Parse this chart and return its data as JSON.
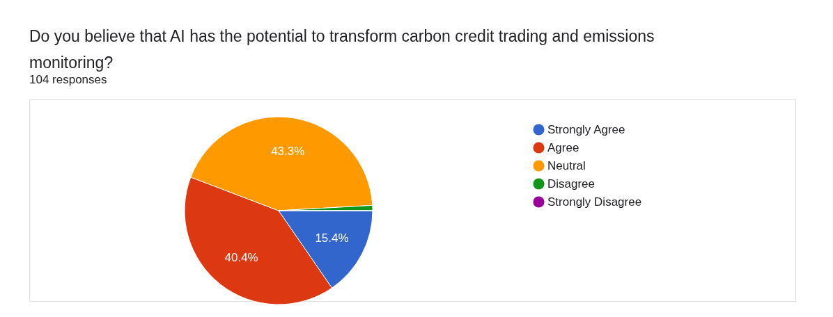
{
  "chart_data": {
    "type": "pie",
    "title": "Do you believe that AI has the potential to transform carbon credit trading and emissions monitoring?",
    "subtitle": "104 responses",
    "categories": [
      "Strongly Agree",
      "Agree",
      "Neutral",
      "Disagree",
      "Strongly Disagree"
    ],
    "values": [
      15.4,
      40.4,
      43.3,
      0.9,
      0
    ],
    "colors": [
      "#3366cc",
      "#dc3912",
      "#ff9900",
      "#109618",
      "#990099"
    ],
    "value_labels": [
      "15.4%",
      "40.4%",
      "43.3%",
      null,
      null
    ],
    "legend": "right"
  }
}
